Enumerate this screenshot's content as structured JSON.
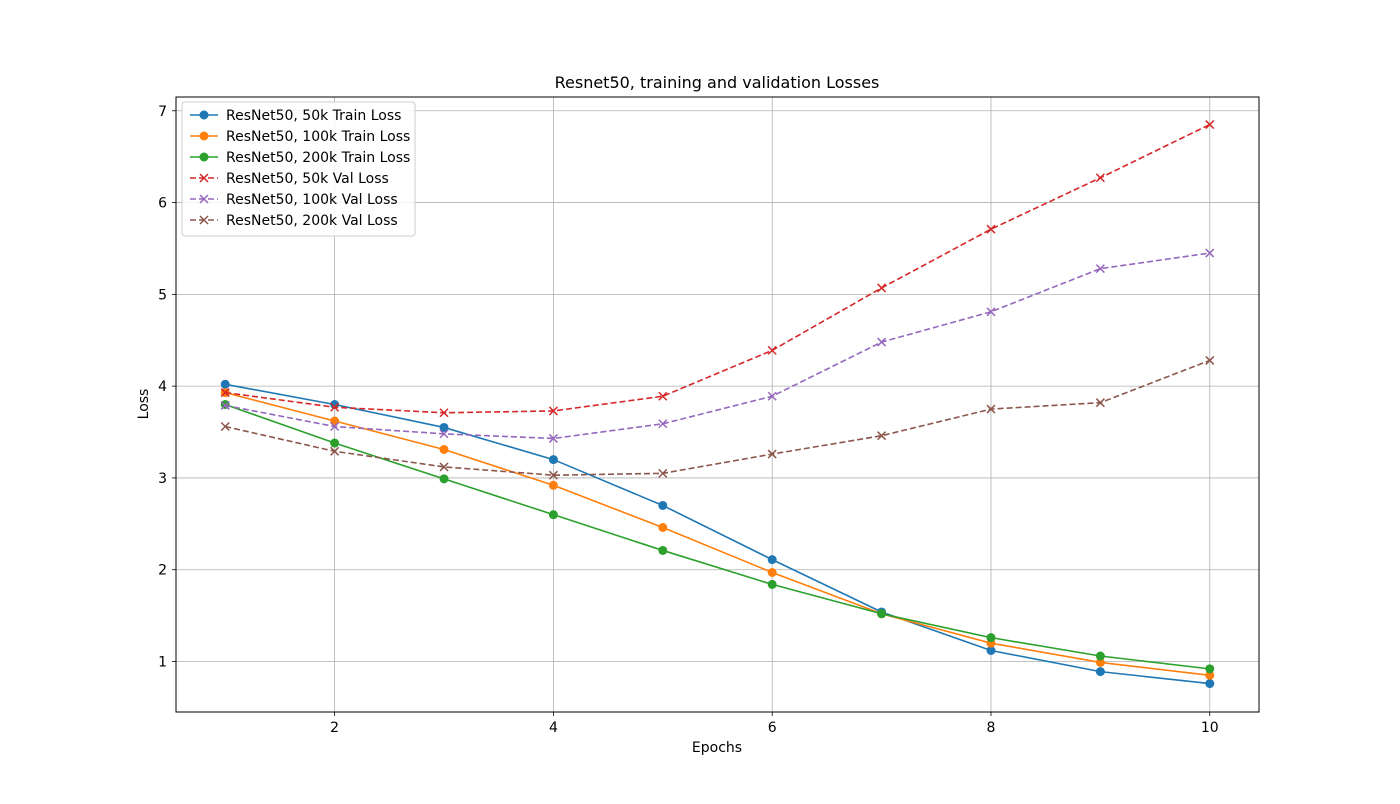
{
  "chart_data": {
    "type": "line",
    "title": "Resnet50, training and validation Losses",
    "xlabel": "Epochs",
    "ylabel": "Loss",
    "xlim": [
      0.55,
      10.45
    ],
    "ylim": [
      0.45,
      7.15
    ],
    "xticks": [
      2,
      4,
      6,
      8,
      10
    ],
    "yticks": [
      1,
      2,
      3,
      4,
      5,
      6,
      7
    ],
    "grid": true,
    "legend_position": "top-left",
    "x": [
      1,
      2,
      3,
      4,
      5,
      6,
      7,
      8,
      9,
      10
    ],
    "series": [
      {
        "name": "ResNet50, 50k Train Loss",
        "color": "#1f77b4",
        "linestyle": "solid",
        "marker": "circle",
        "values": [
          4.02,
          3.8,
          3.55,
          3.2,
          2.7,
          2.11,
          1.54,
          1.12,
          0.89,
          0.76
        ]
      },
      {
        "name": "ResNet50, 100k Train Loss",
        "color": "#ff7f0e",
        "linestyle": "solid",
        "marker": "circle",
        "values": [
          3.93,
          3.62,
          3.31,
          2.92,
          2.46,
          1.97,
          1.52,
          1.2,
          0.99,
          0.85
        ]
      },
      {
        "name": "ResNet50, 200k Train Loss",
        "color": "#2ca02c",
        "linestyle": "solid",
        "marker": "circle",
        "values": [
          3.8,
          3.38,
          2.99,
          2.6,
          2.21,
          1.84,
          1.52,
          1.26,
          1.06,
          0.92
        ]
      },
      {
        "name": "ResNet50, 50k Val Loss",
        "color": "#d62728",
        "linestyle": "dashed",
        "marker": "x",
        "values": [
          3.93,
          3.77,
          3.71,
          3.73,
          3.89,
          4.39,
          5.07,
          5.71,
          6.27,
          6.85
        ]
      },
      {
        "name": "ResNet50, 100k Val Loss",
        "color": "#9467bd",
        "linestyle": "dashed",
        "marker": "x",
        "values": [
          3.79,
          3.56,
          3.48,
          3.43,
          3.59,
          3.89,
          4.48,
          4.81,
          5.28,
          5.45
        ]
      },
      {
        "name": "ResNet50, 200k Val Loss",
        "color": "#8c564b",
        "linestyle": "dashed",
        "marker": "x",
        "values": [
          3.56,
          3.29,
          3.12,
          3.03,
          3.05,
          3.26,
          3.46,
          3.75,
          3.82,
          4.28
        ]
      }
    ]
  }
}
